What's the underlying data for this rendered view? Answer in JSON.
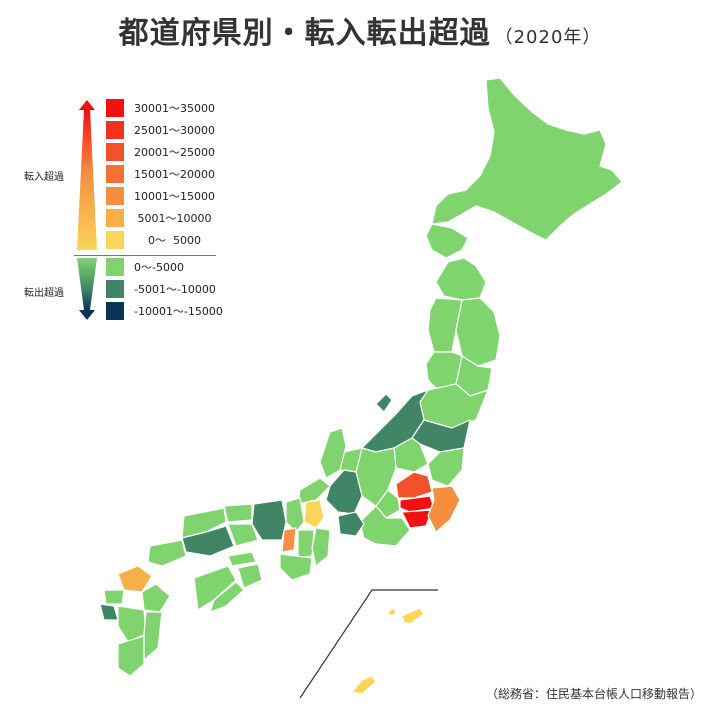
{
  "title": "都道府県別・転入転出超過",
  "title_year": "（2020年）",
  "source": "（総務省：住民基本台帳人口移動報告）",
  "legend": {
    "in_label": "転入超過",
    "out_label": "転出超過",
    "in_items": [
      {
        "label": "30001〜35000",
        "color": "#f21010"
      },
      {
        "label": "25001〜30000",
        "color": "#f4311d"
      },
      {
        "label": "20001〜25000",
        "color": "#f4502a"
      },
      {
        "label": "15001〜20000",
        "color": "#f57035"
      },
      {
        "label": "10001〜15000",
        "color": "#f58f3f"
      },
      {
        "label": " 5001〜10000",
        "color": "#f8af48"
      },
      {
        "label": "    0〜  5000",
        "color": "#fbd45a"
      }
    ],
    "out_items": [
      {
        "label": "0〜-5000",
        "color": "#7fd46e"
      },
      {
        "label": "-5001〜-10000",
        "color": "#3f8566"
      },
      {
        "label": "-10001〜-15000",
        "color": "#0a3456"
      }
    ]
  },
  "colors": {
    "out_low": "#7fd46e",
    "out_mid": "#3f8566",
    "in_low": "#fbd45a",
    "in_mid": "#f8af48",
    "in_orange": "#f58f3f",
    "in_high": "#f4502a",
    "in_top": "#f21010"
  }
}
